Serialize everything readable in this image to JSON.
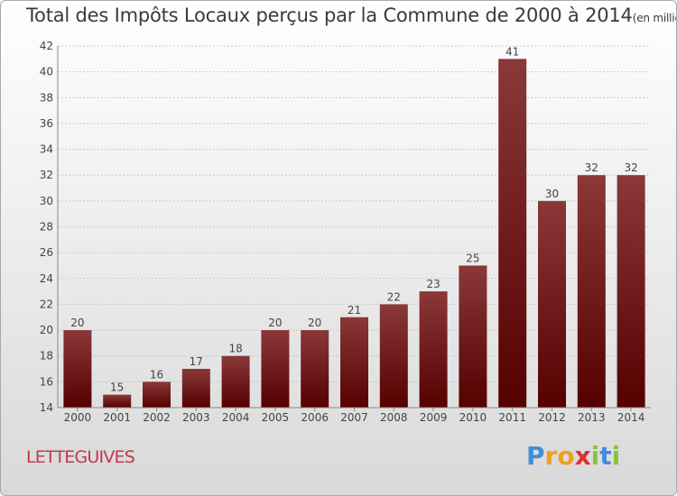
{
  "header": {
    "title": "Total des Impôts Locaux perçus par la Commune de 2000 à 2014",
    "unit": "(en milliers d'€)"
  },
  "commune_name": "LETTEGUIVES",
  "logo": {
    "p": "P",
    "r": "r",
    "o": "o",
    "x": "x",
    "i": "i",
    "t": "t",
    "i2": "i"
  },
  "colors": {
    "bar_light": "#8a3838",
    "bar_dark": "#5a0000",
    "grid": "#c8c8c8"
  },
  "chart_data": {
    "type": "bar",
    "title": "Total des Impôts Locaux perçus par la Commune de 2000 à 2014",
    "xlabel": "",
    "ylabel": "",
    "categories": [
      "2000",
      "2001",
      "2002",
      "2003",
      "2004",
      "2005",
      "2006",
      "2007",
      "2008",
      "2009",
      "2010",
      "2011",
      "2012",
      "2013",
      "2014"
    ],
    "values": [
      20,
      15,
      16,
      17,
      18,
      20,
      20,
      21,
      22,
      23,
      25,
      41,
      30,
      32,
      32
    ],
    "ylim": [
      14,
      42
    ],
    "yticks": [
      14,
      16,
      18,
      20,
      22,
      24,
      26,
      28,
      30,
      32,
      34,
      36,
      38,
      40,
      42
    ],
    "grid": true
  }
}
